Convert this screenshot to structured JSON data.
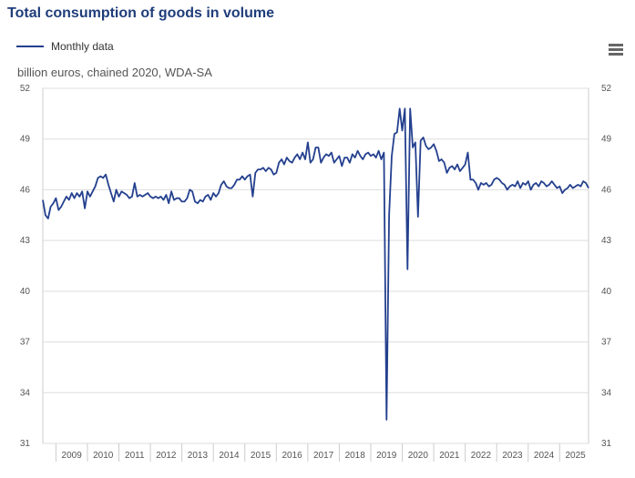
{
  "title": "Total consumption of goods in volume",
  "legend": {
    "label": "Monthly data",
    "color": "#24408e"
  },
  "unit_label": "billion euros, chained 2020, WDA-SA",
  "menu_icon": "hamburger-menu-icon",
  "chart_data": {
    "type": "line",
    "title": "Total consumption of goods in volume",
    "ylabel": "billion euros, chained 2020, WDA-SA",
    "ylim": [
      31,
      52
    ],
    "y_ticks": [
      31,
      34,
      37,
      40,
      43,
      46,
      49,
      52
    ],
    "x_tick_labels": [
      "2009",
      "2010",
      "2011",
      "2012",
      "2013",
      "2014",
      "2015",
      "2016",
      "2017",
      "2018",
      "2019",
      "2020",
      "2021",
      "2022",
      "2023",
      "2024",
      "2025"
    ],
    "grid": true,
    "legend_position": "top-left",
    "series": [
      {
        "name": "Monthly data",
        "color": "#24408e",
        "start": "2008-08",
        "frequency": "monthly",
        "values": [
          45.4,
          44.5,
          44.3,
          45.0,
          45.2,
          45.5,
          44.8,
          45.0,
          45.3,
          45.6,
          45.4,
          45.8,
          45.5,
          45.8,
          45.6,
          45.9,
          44.9,
          45.9,
          45.6,
          45.9,
          46.2,
          46.7,
          46.8,
          46.7,
          46.9,
          46.3,
          45.8,
          45.3,
          46.0,
          45.6,
          45.9,
          45.8,
          45.7,
          45.5,
          45.6,
          46.4,
          45.6,
          45.7,
          45.6,
          45.7,
          45.8,
          45.6,
          45.5,
          45.6,
          45.5,
          45.6,
          45.4,
          45.7,
          45.2,
          45.9,
          45.4,
          45.5,
          45.5,
          45.3,
          45.3,
          45.5,
          46.0,
          45.9,
          45.3,
          45.2,
          45.4,
          45.3,
          45.6,
          45.7,
          45.4,
          45.8,
          45.6,
          45.8,
          46.3,
          46.5,
          46.2,
          46.1,
          46.1,
          46.3,
          46.6,
          46.6,
          46.8,
          46.6,
          46.8,
          46.9,
          45.6,
          47.0,
          47.2,
          47.2,
          47.3,
          47.1,
          47.3,
          47.2,
          46.9,
          47.0,
          47.6,
          47.8,
          47.5,
          47.9,
          47.7,
          47.6,
          47.9,
          48.1,
          47.8,
          48.2,
          47.8,
          48.8,
          47.6,
          47.8,
          48.5,
          48.5,
          47.6,
          47.9,
          48.1,
          48.0,
          48.2,
          47.6,
          47.8,
          48.0,
          47.4,
          47.9,
          47.9,
          47.6,
          48.1,
          47.9,
          48.3,
          48.0,
          47.8,
          48.1,
          48.2,
          48.0,
          48.1,
          47.9,
          48.3,
          47.8,
          48.2,
          32.4,
          44.5,
          48.0,
          49.3,
          49.4,
          50.8,
          49.5,
          50.8,
          41.3,
          50.8,
          48.5,
          48.8,
          44.4,
          48.9,
          49.1,
          48.6,
          48.4,
          48.5,
          48.7,
          48.3,
          47.7,
          47.8,
          47.6,
          47.0,
          47.3,
          47.4,
          47.2,
          47.5,
          47.1,
          47.3,
          47.5,
          48.2,
          46.6,
          46.6,
          46.4,
          46.0,
          46.4,
          46.3,
          46.4,
          46.2,
          46.3,
          46.6,
          46.7,
          46.6,
          46.4,
          46.3,
          46.0,
          46.2,
          46.3,
          46.2,
          46.5,
          46.1,
          46.4,
          46.3,
          46.5,
          46.0,
          46.3,
          46.4,
          46.2,
          46.5,
          46.4,
          46.2,
          46.3,
          46.5,
          46.3,
          46.1,
          46.2,
          45.8,
          46.0,
          46.1,
          46.3,
          46.1,
          46.2,
          46.3,
          46.2,
          46.5,
          46.4,
          46.1
        ]
      }
    ]
  }
}
